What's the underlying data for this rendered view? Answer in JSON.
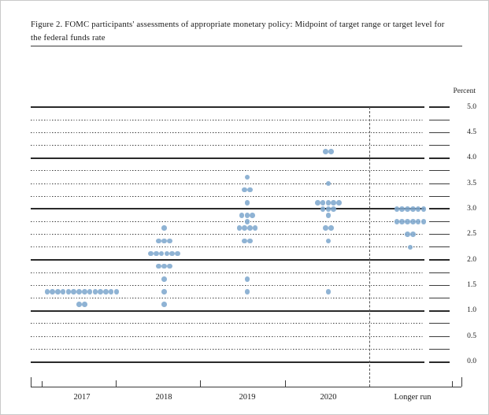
{
  "figure": {
    "title_line1": "Figure 2. FOMC participants' assessments of appropriate monetary policy: Midpoint of target range or target level for",
    "title_line2": "the federal funds rate",
    "percent_label": "Percent"
  },
  "chart_data": {
    "type": "scatter",
    "subtype": "fomc-dot-plot",
    "title": "Figure 2. FOMC participants' assessments of appropriate monetary policy: Midpoint of target range or target level for the federal funds rate",
    "ylabel": "Percent",
    "ylim": [
      0.0,
      5.0
    ],
    "grid": "horizontal every 0.25; solid at integers, dotted otherwise",
    "legend": "none",
    "y_tick_labels": [
      "5.0",
      "4.5",
      "4.0",
      "3.5",
      "3.0",
      "2.5",
      "2.0",
      "1.5",
      "1.0",
      "0.5",
      "0.0"
    ],
    "categories": [
      "2017",
      "2018",
      "2019",
      "2020",
      "Longer run"
    ],
    "separator_before_category": "Longer run",
    "series": [
      {
        "name": "2017",
        "dots": [
          {
            "rate": 1.375,
            "count": 14
          },
          {
            "rate": 1.125,
            "count": 2
          }
        ]
      },
      {
        "name": "2018",
        "dots": [
          {
            "rate": 2.625,
            "count": 1
          },
          {
            "rate": 2.375,
            "count": 3
          },
          {
            "rate": 2.125,
            "count": 6
          },
          {
            "rate": 1.875,
            "count": 3
          },
          {
            "rate": 1.625,
            "count": 1
          },
          {
            "rate": 1.375,
            "count": 1
          },
          {
            "rate": 1.125,
            "count": 1
          }
        ]
      },
      {
        "name": "2019",
        "dots": [
          {
            "rate": 3.625,
            "count": 1
          },
          {
            "rate": 3.375,
            "count": 2
          },
          {
            "rate": 3.125,
            "count": 1
          },
          {
            "rate": 2.875,
            "count": 3
          },
          {
            "rate": 2.75,
            "count": 1
          },
          {
            "rate": 2.625,
            "count": 4
          },
          {
            "rate": 2.375,
            "count": 2
          },
          {
            "rate": 1.625,
            "count": 1
          },
          {
            "rate": 1.375,
            "count": 1
          }
        ]
      },
      {
        "name": "2020",
        "dots": [
          {
            "rate": 4.125,
            "count": 2
          },
          {
            "rate": 3.5,
            "count": 1
          },
          {
            "rate": 3.125,
            "count": 5
          },
          {
            "rate": 3.0,
            "count": 3
          },
          {
            "rate": 2.875,
            "count": 1
          },
          {
            "rate": 2.625,
            "count": 2
          },
          {
            "rate": 2.375,
            "count": 1
          },
          {
            "rate": 1.375,
            "count": 1
          }
        ]
      },
      {
        "name": "Longer run",
        "dots": [
          {
            "rate": 3.0,
            "count": 6
          },
          {
            "rate": 2.75,
            "count": 6
          },
          {
            "rate": 2.5,
            "count": 2
          },
          {
            "rate": 2.25,
            "count": 1
          }
        ]
      }
    ],
    "dot_color": "#7fa8ce",
    "line_color": "#2a2a2a"
  }
}
